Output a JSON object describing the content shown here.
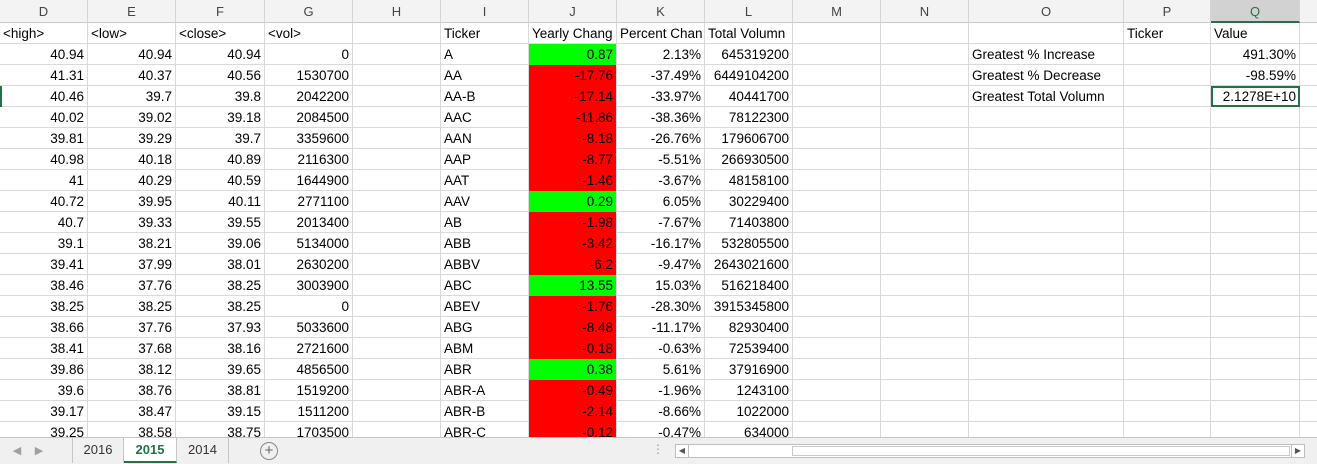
{
  "columns": [
    "D",
    "E",
    "F",
    "G",
    "H",
    "I",
    "J",
    "K",
    "L",
    "M",
    "N",
    "O",
    "P",
    "Q"
  ],
  "selected_column": "Q",
  "headers": {
    "high": "<high>",
    "low": "<low>",
    "close": "<close>",
    "vol": "<vol>",
    "ticker": "Ticker",
    "yearly_change": "Yearly Chang",
    "percent_change": "Percent Chan",
    "total_volume": "Total Volumn",
    "summary_ticker": "Ticker",
    "summary_value": "Value"
  },
  "rows": [
    {
      "high": "40.94",
      "low": "40.94",
      "close": "40.94",
      "vol": "0",
      "ticker": "A",
      "yc": "0.87",
      "yc_status": "positive",
      "pc": "2.13%",
      "tv": "645319200"
    },
    {
      "high": "41.31",
      "low": "40.37",
      "close": "40.56",
      "vol": "1530700",
      "ticker": "AA",
      "yc": "-17.76",
      "yc_status": "negative",
      "pc": "-37.49%",
      "tv": "6449104200"
    },
    {
      "high": "40.46",
      "low": "39.7",
      "close": "39.8",
      "vol": "2042200",
      "ticker": "AA-B",
      "yc": "-17.14",
      "yc_status": "negative",
      "pc": "-33.97%",
      "tv": "40441700"
    },
    {
      "high": "40.02",
      "low": "39.02",
      "close": "39.18",
      "vol": "2084500",
      "ticker": "AAC",
      "yc": "-11.86",
      "yc_status": "negative",
      "pc": "-38.36%",
      "tv": "78122300"
    },
    {
      "high": "39.81",
      "low": "39.29",
      "close": "39.7",
      "vol": "3359600",
      "ticker": "AAN",
      "yc": "-8.18",
      "yc_status": "negative",
      "pc": "-26.76%",
      "tv": "179606700"
    },
    {
      "high": "40.98",
      "low": "40.18",
      "close": "40.89",
      "vol": "2116300",
      "ticker": "AAP",
      "yc": "-8.77",
      "yc_status": "negative",
      "pc": "-5.51%",
      "tv": "266930500"
    },
    {
      "high": "41",
      "low": "40.29",
      "close": "40.59",
      "vol": "1644900",
      "ticker": "AAT",
      "yc": "-1.46",
      "yc_status": "negative",
      "pc": "-3.67%",
      "tv": "48158100"
    },
    {
      "high": "40.72",
      "low": "39.95",
      "close": "40.11",
      "vol": "2771100",
      "ticker": "AAV",
      "yc": "0.29",
      "yc_status": "positive",
      "pc": "6.05%",
      "tv": "30229400"
    },
    {
      "high": "40.7",
      "low": "39.33",
      "close": "39.55",
      "vol": "2013400",
      "ticker": "AB",
      "yc": "-1.98",
      "yc_status": "negative",
      "pc": "-7.67%",
      "tv": "71403800"
    },
    {
      "high": "39.1",
      "low": "38.21",
      "close": "39.06",
      "vol": "5134000",
      "ticker": "ABB",
      "yc": "-3.42",
      "yc_status": "negative",
      "pc": "-16.17%",
      "tv": "532805500"
    },
    {
      "high": "39.41",
      "low": "37.99",
      "close": "38.01",
      "vol": "2630200",
      "ticker": "ABBV",
      "yc": "-6.2",
      "yc_status": "negative",
      "pc": "-9.47%",
      "tv": "2643021600"
    },
    {
      "high": "38.46",
      "low": "37.76",
      "close": "38.25",
      "vol": "3003900",
      "ticker": "ABC",
      "yc": "13.55",
      "yc_status": "positive",
      "pc": "15.03%",
      "tv": "516218400"
    },
    {
      "high": "38.25",
      "low": "38.25",
      "close": "38.25",
      "vol": "0",
      "ticker": "ABEV",
      "yc": "-1.76",
      "yc_status": "negative",
      "pc": "-28.30%",
      "tv": "3915345800"
    },
    {
      "high": "38.66",
      "low": "37.76",
      "close": "37.93",
      "vol": "5033600",
      "ticker": "ABG",
      "yc": "-8.48",
      "yc_status": "negative",
      "pc": "-11.17%",
      "tv": "82930400"
    },
    {
      "high": "38.41",
      "low": "37.68",
      "close": "38.16",
      "vol": "2721600",
      "ticker": "ABM",
      "yc": "-0.18",
      "yc_status": "negative",
      "pc": "-0.63%",
      "tv": "72539400"
    },
    {
      "high": "39.86",
      "low": "38.12",
      "close": "39.65",
      "vol": "4856500",
      "ticker": "ABR",
      "yc": "0.38",
      "yc_status": "positive",
      "pc": "5.61%",
      "tv": "37916900"
    },
    {
      "high": "39.6",
      "low": "38.76",
      "close": "38.81",
      "vol": "1519200",
      "ticker": "ABR-A",
      "yc": "-0.49",
      "yc_status": "negative",
      "pc": "-1.96%",
      "tv": "1243100"
    },
    {
      "high": "39.17",
      "low": "38.47",
      "close": "39.15",
      "vol": "1511200",
      "ticker": "ABR-B",
      "yc": "-2.14",
      "yc_status": "negative",
      "pc": "-8.66%",
      "tv": "1022000"
    },
    {
      "high": "39.25",
      "low": "38.58",
      "close": "38.75",
      "vol": "1703500",
      "ticker": "ABR-C",
      "yc": "-0.12",
      "yc_status": "negative",
      "pc": "-0.47%",
      "tv": "634000"
    }
  ],
  "summary": [
    {
      "label": "Greatest % Increase",
      "ticker": "",
      "value": "491.30%"
    },
    {
      "label": "Greatest % Decrease",
      "ticker": "",
      "value": "-98.59%"
    },
    {
      "label": "Greatest Total Volumn",
      "ticker": "",
      "value": "2.1278E+10"
    }
  ],
  "sheet_tabs": [
    "2016",
    "2015",
    "2014"
  ],
  "active_tab": "2015",
  "colors": {
    "positive": "#00ff00",
    "negative": "#ff0000",
    "accent": "#217346"
  },
  "icons": {
    "add_sheet": "plus-circle-icon",
    "prev": "triangle-left-icon",
    "next": "triangle-right-icon"
  }
}
